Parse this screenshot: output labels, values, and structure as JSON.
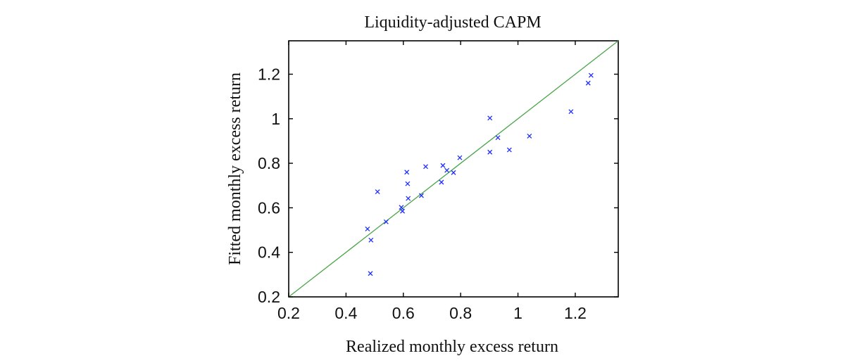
{
  "chart_data": {
    "type": "scatter",
    "title": "Liquidity-adjusted CAPM",
    "xlabel": "Realized monthly excess return",
    "ylabel": "Fitted monthly excess return",
    "xlim": [
      0.2,
      1.35
    ],
    "ylim": [
      0.2,
      1.35
    ],
    "xticks": [
      "0.2",
      "0.4",
      "0.6",
      "0.8",
      "1",
      "1.2"
    ],
    "yticks": [
      "0.2",
      "0.4",
      "0.6",
      "0.8",
      "1",
      "1.2"
    ],
    "grid": false,
    "reference_line": "y = x",
    "colors": {
      "points": "#1f2fff",
      "reference_line": "#4aa44a"
    },
    "marker": "x",
    "points": [
      {
        "x": 0.475,
        "y": 0.505
      },
      {
        "x": 0.487,
        "y": 0.455
      },
      {
        "x": 0.485,
        "y": 0.305
      },
      {
        "x": 0.51,
        "y": 0.672
      },
      {
        "x": 0.54,
        "y": 0.537
      },
      {
        "x": 0.593,
        "y": 0.602
      },
      {
        "x": 0.597,
        "y": 0.585
      },
      {
        "x": 0.612,
        "y": 0.76
      },
      {
        "x": 0.615,
        "y": 0.708
      },
      {
        "x": 0.617,
        "y": 0.642
      },
      {
        "x": 0.663,
        "y": 0.655
      },
      {
        "x": 0.678,
        "y": 0.785
      },
      {
        "x": 0.733,
        "y": 0.715
      },
      {
        "x": 0.738,
        "y": 0.79
      },
      {
        "x": 0.752,
        "y": 0.768
      },
      {
        "x": 0.775,
        "y": 0.758
      },
      {
        "x": 0.797,
        "y": 0.825
      },
      {
        "x": 0.902,
        "y": 1.003
      },
      {
        "x": 0.902,
        "y": 0.85
      },
      {
        "x": 0.93,
        "y": 0.915
      },
      {
        "x": 0.97,
        "y": 0.86
      },
      {
        "x": 1.04,
        "y": 0.922
      },
      {
        "x": 1.185,
        "y": 1.032
      },
      {
        "x": 1.245,
        "y": 1.16
      },
      {
        "x": 1.255,
        "y": 1.195
      }
    ]
  }
}
